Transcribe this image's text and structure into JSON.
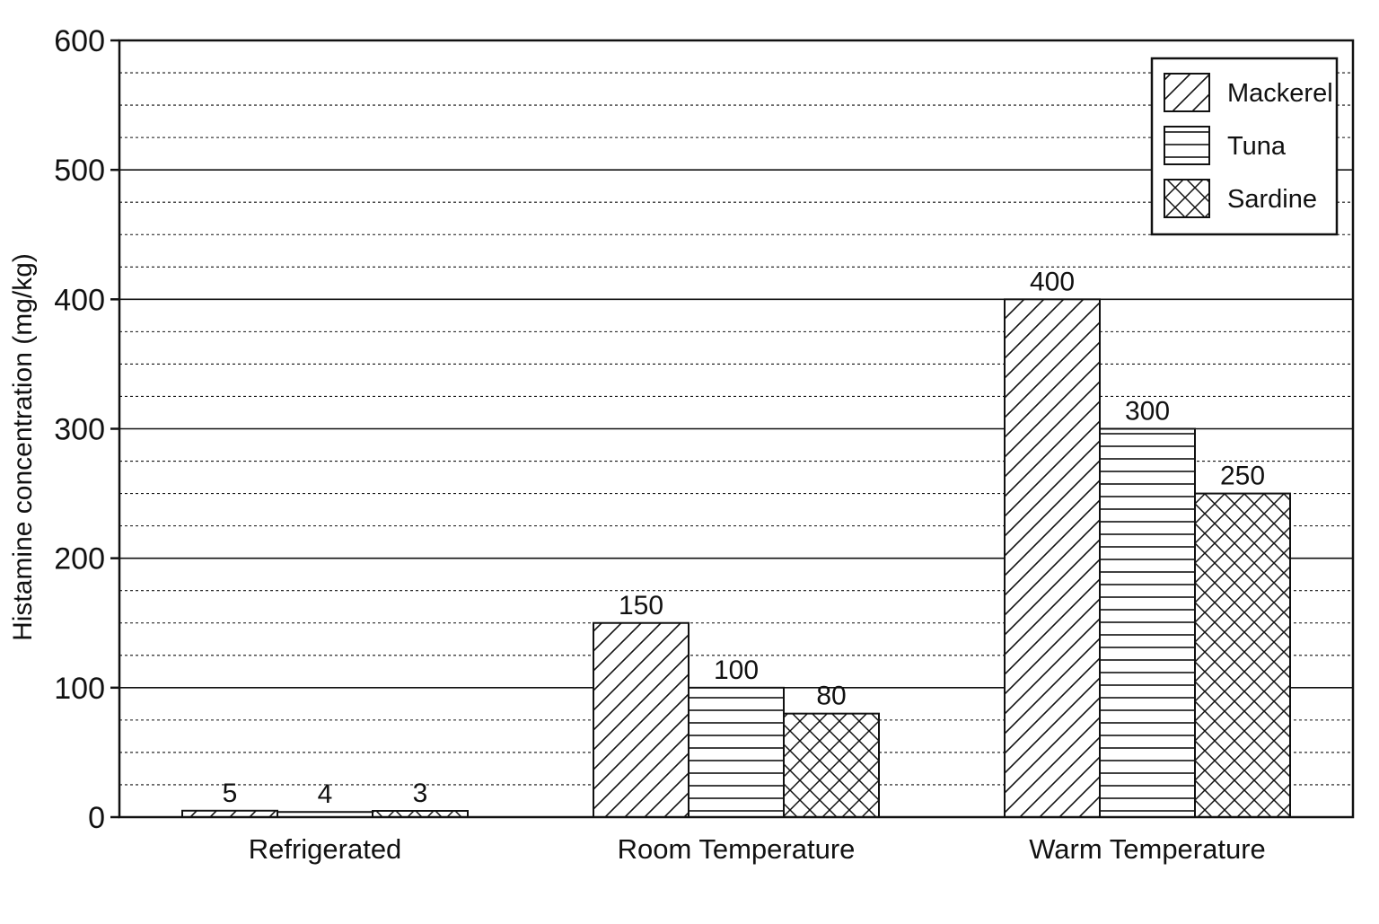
{
  "chart_data": {
    "type": "bar",
    "title": "",
    "xlabel": "",
    "ylabel": "Histamine concentration (mg/kg)",
    "ylim": [
      0,
      600
    ],
    "yticks": [
      0,
      100,
      200,
      300,
      400,
      500,
      600
    ],
    "minor_grid_step": 25,
    "grid": true,
    "legend_position": "top-right",
    "categories": [
      "Refrigerated",
      "Room Temperature",
      "Warm Temperature"
    ],
    "series": [
      {
        "name": "Mackerel",
        "pattern": "diagonal-hatch",
        "values": [
          5,
          150,
          400
        ]
      },
      {
        "name": "Tuna",
        "pattern": "horizontal-hatch",
        "values": [
          4,
          100,
          300
        ]
      },
      {
        "name": "Sardine",
        "pattern": "cross-hatch",
        "values": [
          3,
          80,
          250
        ]
      }
    ],
    "colors": {
      "ink": "#111111",
      "background": "#ffffff"
    }
  }
}
